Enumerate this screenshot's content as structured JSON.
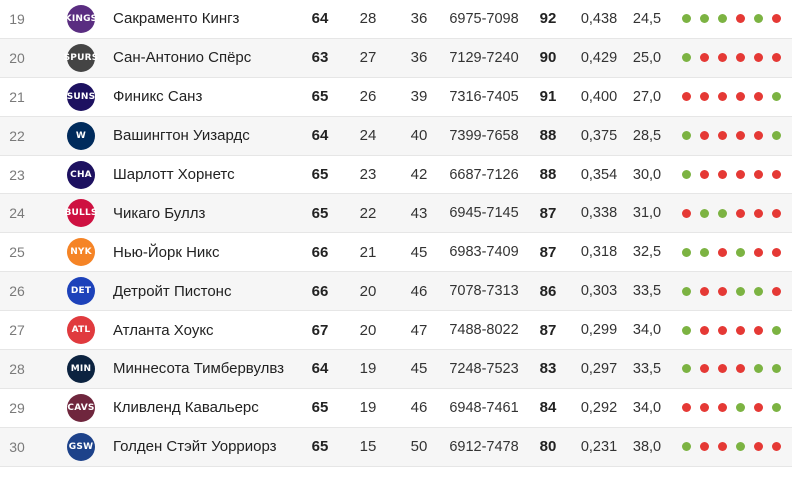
{
  "colors": {
    "win": "#7cb342",
    "loss": "#e53935"
  },
  "rows": [
    {
      "rank": "19",
      "team": "Сакраменто Кингз",
      "logo": "kings-logo",
      "logo_text": "KINGS",
      "logo_color": "#5a2d81",
      "games": "64",
      "wins": "28",
      "losses": "36",
      "score": "6975-7098",
      "points": "92",
      "pct": "0,438",
      "gb": "24,5",
      "form": [
        "W",
        "W",
        "W",
        "L",
        "W",
        "L"
      ]
    },
    {
      "rank": "20",
      "team": "Сан-Антонио Спёрс",
      "logo": "spurs-logo",
      "logo_text": "SPURS",
      "logo_color": "#444444",
      "games": "63",
      "wins": "27",
      "losses": "36",
      "score": "7129-7240",
      "points": "90",
      "pct": "0,429",
      "gb": "25,0",
      "form": [
        "W",
        "L",
        "L",
        "L",
        "L",
        "L"
      ]
    },
    {
      "rank": "21",
      "team": "Финикс Санз",
      "logo": "suns-logo",
      "logo_text": "SUNS",
      "logo_color": "#1d1160",
      "games": "65",
      "wins": "26",
      "losses": "39",
      "score": "7316-7405",
      "points": "91",
      "pct": "0,400",
      "gb": "27,0",
      "form": [
        "L",
        "L",
        "L",
        "L",
        "L",
        "W"
      ]
    },
    {
      "rank": "22",
      "team": "Вашингтон Уизардс",
      "logo": "wizards-logo",
      "logo_text": "W",
      "logo_color": "#002b5c",
      "games": "64",
      "wins": "24",
      "losses": "40",
      "score": "7399-7658",
      "points": "88",
      "pct": "0,375",
      "gb": "28,5",
      "form": [
        "W",
        "L",
        "L",
        "L",
        "L",
        "W"
      ]
    },
    {
      "rank": "23",
      "team": "Шарлотт Хорнетс",
      "logo": "hornets-logo",
      "logo_text": "CHA",
      "logo_color": "#1d1160",
      "games": "65",
      "wins": "23",
      "losses": "42",
      "score": "6687-7126",
      "points": "88",
      "pct": "0,354",
      "gb": "30,0",
      "form": [
        "W",
        "L",
        "L",
        "L",
        "L",
        "L"
      ]
    },
    {
      "rank": "24",
      "team": "Чикаго Буллз",
      "logo": "bulls-logo",
      "logo_text": "BULLS",
      "logo_color": "#ce1141",
      "games": "65",
      "wins": "22",
      "losses": "43",
      "score": "6945-7145",
      "points": "87",
      "pct": "0,338",
      "gb": "31,0",
      "form": [
        "L",
        "W",
        "W",
        "L",
        "L",
        "L"
      ]
    },
    {
      "rank": "25",
      "team": "Нью-Йорк Никс",
      "logo": "knicks-logo",
      "logo_text": "NYK",
      "logo_color": "#f58426",
      "games": "66",
      "wins": "21",
      "losses": "45",
      "score": "6983-7409",
      "points": "87",
      "pct": "0,318",
      "gb": "32,5",
      "form": [
        "W",
        "W",
        "L",
        "W",
        "L",
        "L"
      ]
    },
    {
      "rank": "26",
      "team": "Детройт Пистонс",
      "logo": "pistons-logo",
      "logo_text": "DET",
      "logo_color": "#1d42ba",
      "games": "66",
      "wins": "20",
      "losses": "46",
      "score": "7078-7313",
      "points": "86",
      "pct": "0,303",
      "gb": "33,5",
      "form": [
        "W",
        "L",
        "L",
        "W",
        "W",
        "L"
      ]
    },
    {
      "rank": "27",
      "team": "Атланта Хоукс",
      "logo": "hawks-logo",
      "logo_text": "ATL",
      "logo_color": "#e03a3e",
      "games": "67",
      "wins": "20",
      "losses": "47",
      "score": "7488-8022",
      "points": "87",
      "pct": "0,299",
      "gb": "34,0",
      "form": [
        "W",
        "L",
        "L",
        "L",
        "L",
        "W"
      ]
    },
    {
      "rank": "28",
      "team": "Миннесота Тимбервулвз",
      "logo": "timberwolves-logo",
      "logo_text": "MIN",
      "logo_color": "#0c2340",
      "games": "64",
      "wins": "19",
      "losses": "45",
      "score": "7248-7523",
      "points": "83",
      "pct": "0,297",
      "gb": "33,5",
      "form": [
        "W",
        "L",
        "L",
        "L",
        "W",
        "W"
      ]
    },
    {
      "rank": "29",
      "team": "Кливленд Кавальерс",
      "logo": "cavaliers-logo",
      "logo_text": "CAVS",
      "logo_color": "#6f263d",
      "games": "65",
      "wins": "19",
      "losses": "46",
      "score": "6948-7461",
      "points": "84",
      "pct": "0,292",
      "gb": "34,0",
      "form": [
        "L",
        "L",
        "L",
        "W",
        "L",
        "W"
      ]
    },
    {
      "rank": "30",
      "team": "Голден Стэйт Уорриорз",
      "logo": "warriors-logo",
      "logo_text": "GSW",
      "logo_color": "#1d428a",
      "games": "65",
      "wins": "15",
      "losses": "50",
      "score": "6912-7478",
      "points": "80",
      "pct": "0,231",
      "gb": "38,0",
      "form": [
        "W",
        "L",
        "L",
        "W",
        "L",
        "L"
      ]
    }
  ]
}
